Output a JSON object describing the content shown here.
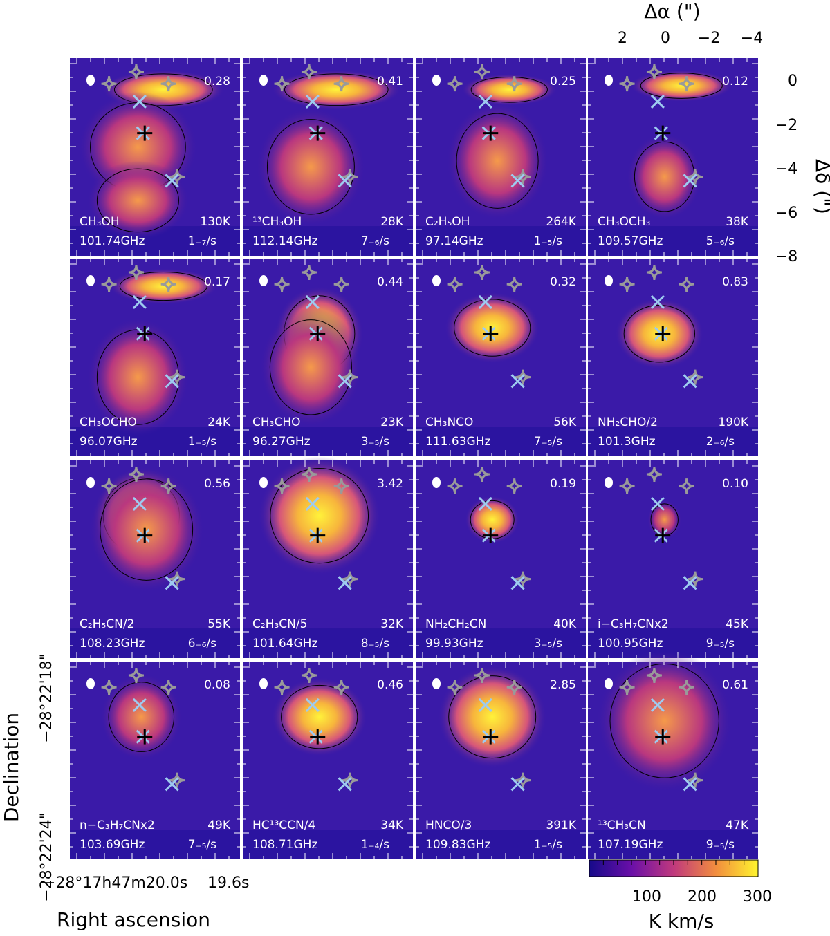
{
  "figure": {
    "top_axis": {
      "title": "Δα (\")",
      "ticks": [
        "2",
        "0",
        "−2",
        "−4"
      ]
    },
    "right_axis": {
      "title": "Δδ (\")",
      "ticks": [
        "0",
        "−2",
        "−4",
        "−6",
        "−8"
      ]
    },
    "left_axis": {
      "title": "Declination",
      "ticks": [
        "−28°22'18\"",
        "−28°22'24\""
      ]
    },
    "bottom_axis": {
      "title": "Right ascension",
      "ticks": [
        "−28°17h47m20.0s",
        "19.6s"
      ]
    },
    "colorbar": {
      "ticks": [
        "100",
        "200",
        "300"
      ],
      "unit": "K km/s",
      "range": [
        0,
        300
      ]
    },
    "marker_colors": {
      "cross": "#9ecbf0",
      "star": "#9a9a9a",
      "center": "#000000"
    }
  },
  "panels": [
    {
      "species": "CH₃OH",
      "temp": "130K",
      "freq": "101.74GHz",
      "vel": "1₋₇/s",
      "peak": "0.28"
    },
    {
      "species": "¹³CH₃OH",
      "temp": "28K",
      "freq": "112.14GHz",
      "vel": "7₋₆/s",
      "peak": "0.41"
    },
    {
      "species": "C₂H₅OH",
      "temp": "264K",
      "freq": "97.14GHz",
      "vel": "1₋₅/s",
      "peak": "0.25"
    },
    {
      "species": "CH₃OCH₃",
      "temp": "38K",
      "freq": "109.57GHz",
      "vel": "5₋₆/s",
      "peak": "0.12"
    },
    {
      "species": "CH₃OCHO",
      "temp": "24K",
      "freq": "96.07GHz",
      "vel": "1₋₅/s",
      "peak": "0.17"
    },
    {
      "species": "CH₃CHO",
      "temp": "23K",
      "freq": "96.27GHz",
      "vel": "3₋₅/s",
      "peak": "0.44"
    },
    {
      "species": "CH₃NCO",
      "temp": "56K",
      "freq": "111.63GHz",
      "vel": "7₋₅/s",
      "peak": "0.32"
    },
    {
      "species": "NH₂CHO/2",
      "temp": "190K",
      "freq": "101.3GHz",
      "vel": "2₋₆/s",
      "peak": "0.83"
    },
    {
      "species": "C₂H₅CN/2",
      "temp": "55K",
      "freq": "108.23GHz",
      "vel": "6₋₆/s",
      "peak": "0.56"
    },
    {
      "species": "C₂H₃CN/5",
      "temp": "32K",
      "freq": "101.64GHz",
      "vel": "8₋₅/s",
      "peak": "3.42"
    },
    {
      "species": "NH₂CH₂CN",
      "temp": "40K",
      "freq": "99.93GHz",
      "vel": "3₋₅/s",
      "peak": "0.19"
    },
    {
      "species": "i−C₃H₇CNx2",
      "temp": "45K",
      "freq": "100.95GHz",
      "vel": "9₋₅/s",
      "peak": "0.10"
    },
    {
      "species": "n−C₃H₇CNx2",
      "temp": "49K",
      "freq": "103.69GHz",
      "vel": "7₋₅/s",
      "peak": "0.08"
    },
    {
      "species": "HC¹³CCN/4",
      "temp": "34K",
      "freq": "108.71GHz",
      "vel": "1₋₄/s",
      "peak": "0.46"
    },
    {
      "species": "HNCO/3",
      "temp": "391K",
      "freq": "109.83GHz",
      "vel": "1₋₅/s",
      "peak": "2.85"
    },
    {
      "species": "¹³CH₃CN",
      "temp": "47K",
      "freq": "107.19GHz",
      "vel": "9₋₅/s",
      "peak": "0.61"
    }
  ]
}
